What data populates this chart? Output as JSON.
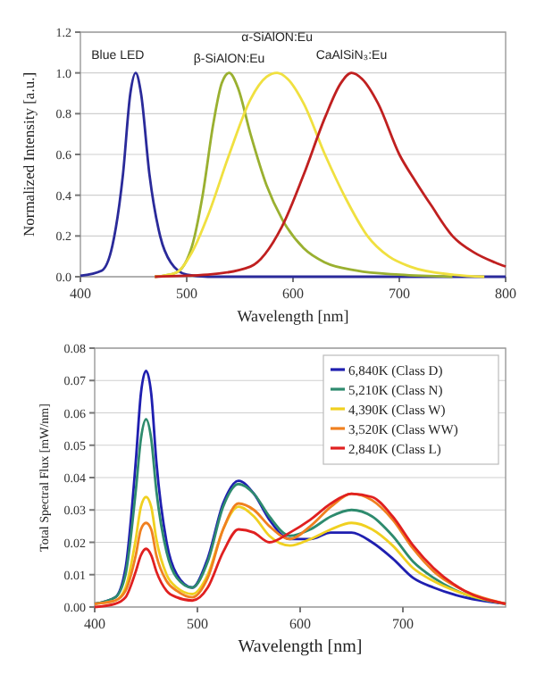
{
  "chart_data": [
    {
      "type": "line",
      "xlabel": "Wavelength [nm]",
      "ylabel": "Normalized Intensity [a.u.]",
      "xlim": [
        400,
        800
      ],
      "xticks": [
        400,
        500,
        600,
        700,
        800
      ],
      "ylim": [
        0,
        1.2
      ],
      "yticks": [
        {
          "value": 0,
          "label": "0.0"
        },
        {
          "value": 0.2,
          "label": "0.2"
        },
        {
          "value": 0.4,
          "label": "0.4"
        },
        {
          "value": 0.6,
          "label": "0.6"
        },
        {
          "value": 0.8,
          "label": "0.8"
        },
        {
          "value": 1,
          "label": "1.0"
        },
        {
          "value": 1.2,
          "label": "1.2"
        }
      ],
      "grid": "y",
      "legend": false,
      "series": [
        {
          "name": "Blue LED",
          "color": "#2a2a9a",
          "x": [
            400,
            420,
            430,
            440,
            447,
            452,
            457,
            465,
            475,
            485,
            500,
            520,
            600,
            800
          ],
          "values": [
            0.005,
            0.03,
            0.15,
            0.5,
            0.9,
            1.0,
            0.9,
            0.5,
            0.2,
            0.07,
            0.01,
            0,
            0,
            0
          ]
        },
        {
          "name": "β-SiAlON:Eu",
          "color": "#9ab030",
          "x": [
            470,
            490,
            505,
            515,
            525,
            533,
            540,
            548,
            560,
            575,
            590,
            610,
            630,
            660,
            700,
            750
          ],
          "values": [
            0,
            0.02,
            0.15,
            0.4,
            0.75,
            0.95,
            1.0,
            0.93,
            0.7,
            0.45,
            0.28,
            0.14,
            0.07,
            0.03,
            0.01,
            0
          ]
        },
        {
          "name": "α-SiAlON:Eu",
          "color": "#f0e040",
          "x": [
            470,
            490,
            505,
            520,
            540,
            560,
            575,
            585,
            595,
            610,
            630,
            650,
            670,
            690,
            710,
            750,
            780
          ],
          "values": [
            0,
            0.02,
            0.12,
            0.3,
            0.6,
            0.87,
            0.98,
            1.0,
            0.97,
            0.85,
            0.6,
            0.38,
            0.2,
            0.1,
            0.05,
            0.01,
            0
          ]
        },
        {
          "name": "CaAlSiN₃:Eu",
          "color": "#c02020",
          "x": [
            470,
            520,
            560,
            590,
            610,
            630,
            645,
            655,
            665,
            680,
            700,
            715,
            730,
            750,
            770,
            790,
            800
          ],
          "values": [
            0,
            0.01,
            0.05,
            0.25,
            0.5,
            0.78,
            0.95,
            1.0,
            0.97,
            0.85,
            0.6,
            0.47,
            0.35,
            0.2,
            0.12,
            0.07,
            0.05
          ]
        }
      ]
    },
    {
      "type": "line",
      "xlabel": "Wavelength [nm]",
      "ylabel": "Total Spectral Flux [mW/nm]",
      "xlim": [
        400,
        800
      ],
      "xticks": [
        400,
        500,
        600,
        700
      ],
      "ylim": [
        0,
        0.08
      ],
      "yticks": [
        {
          "value": 0,
          "label": "0.00"
        },
        {
          "value": 0.01,
          "label": "0.01"
        },
        {
          "value": 0.02,
          "label": "0.02"
        },
        {
          "value": 0.03,
          "label": "0.03"
        },
        {
          "value": 0.04,
          "label": "0.04"
        },
        {
          "value": 0.05,
          "label": "0.05"
        },
        {
          "value": 0.06,
          "label": "0.06"
        },
        {
          "value": 0.07,
          "label": "0.07"
        },
        {
          "value": 0.08,
          "label": "0.08"
        }
      ],
      "grid": "y",
      "legend": "top right",
      "x": [
        400,
        420,
        430,
        440,
        445,
        450,
        455,
        460,
        470,
        480,
        495,
        510,
        525,
        540,
        555,
        570,
        590,
        610,
        630,
        650,
        670,
        690,
        710,
        730,
        760,
        800
      ],
      "series": [
        {
          "name": "6,840K (Class D)",
          "color": "#1f1fb0",
          "values": [
            0.001,
            0.003,
            0.012,
            0.045,
            0.066,
            0.073,
            0.066,
            0.045,
            0.02,
            0.01,
            0.006,
            0.015,
            0.032,
            0.039,
            0.035,
            0.027,
            0.021,
            0.021,
            0.023,
            0.023,
            0.02,
            0.015,
            0.009,
            0.006,
            0.003,
            0.001
          ]
        },
        {
          "name": "5,210K (Class N)",
          "color": "#2e8b6e",
          "values": [
            0.001,
            0.003,
            0.01,
            0.036,
            0.052,
            0.058,
            0.052,
            0.036,
            0.017,
            0.009,
            0.006,
            0.014,
            0.031,
            0.038,
            0.035,
            0.028,
            0.022,
            0.024,
            0.028,
            0.03,
            0.028,
            0.022,
            0.014,
            0.009,
            0.004,
            0.001
          ]
        },
        {
          "name": "4,390K (Class W)",
          "color": "#f0d020",
          "values": [
            0.001,
            0.002,
            0.006,
            0.021,
            0.031,
            0.034,
            0.031,
            0.021,
            0.01,
            0.006,
            0.004,
            0.01,
            0.024,
            0.031,
            0.028,
            0.022,
            0.019,
            0.021,
            0.024,
            0.026,
            0.024,
            0.019,
            0.012,
            0.008,
            0.004,
            0.001
          ]
        },
        {
          "name": "3,520K (Class WW)",
          "color": "#f08020",
          "values": [
            0.001,
            0.002,
            0.005,
            0.016,
            0.024,
            0.026,
            0.024,
            0.016,
            0.008,
            0.005,
            0.003,
            0.009,
            0.024,
            0.032,
            0.03,
            0.025,
            0.021,
            0.025,
            0.031,
            0.035,
            0.033,
            0.027,
            0.018,
            0.011,
            0.005,
            0.001
          ]
        },
        {
          "name": "2,840K (Class L)",
          "color": "#e02020",
          "values": [
            0,
            0.001,
            0.003,
            0.011,
            0.016,
            0.018,
            0.016,
            0.011,
            0.005,
            0.003,
            0.002,
            0.006,
            0.017,
            0.024,
            0.023,
            0.02,
            0.023,
            0.027,
            0.032,
            0.035,
            0.034,
            0.028,
            0.019,
            0.012,
            0.005,
            0.001
          ]
        }
      ]
    }
  ]
}
